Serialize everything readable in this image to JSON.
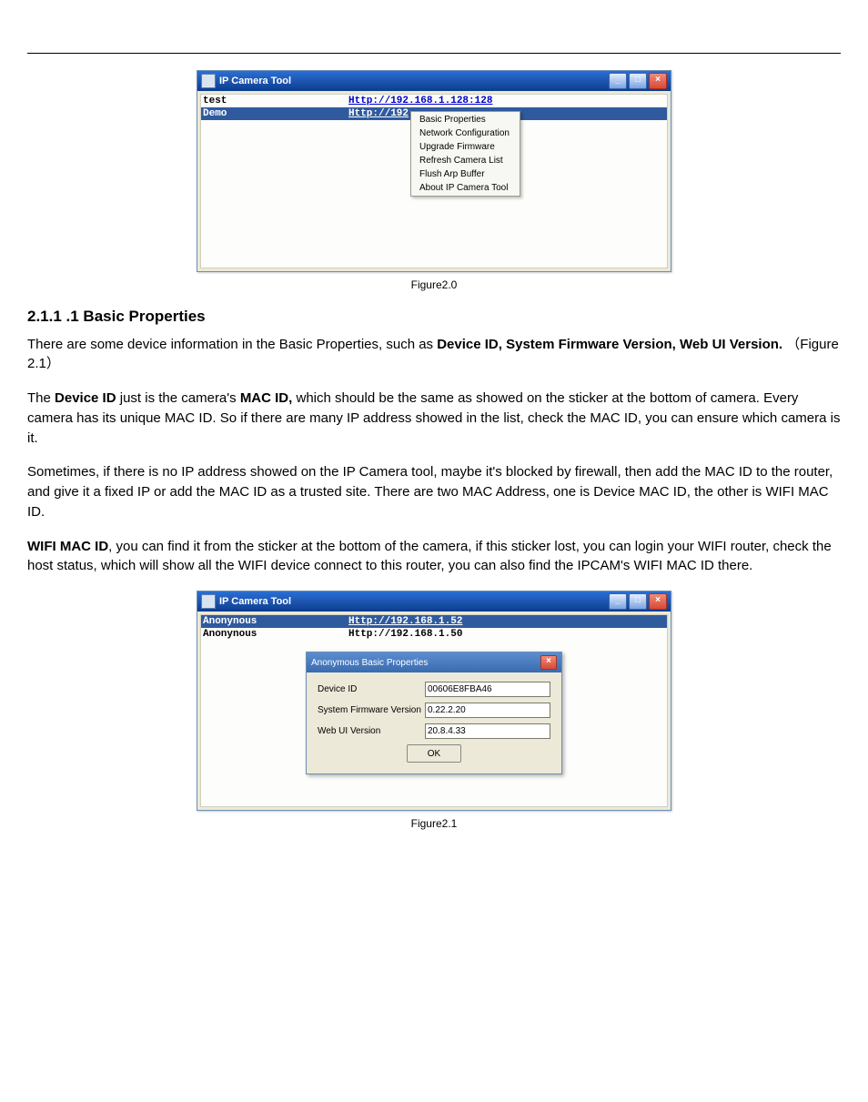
{
  "figure1": {
    "window_title": "IP Camera Tool",
    "rows": [
      {
        "name": "test",
        "url": "Http://192.168.1.128:128",
        "selected": false
      },
      {
        "name": "Demo",
        "url": "Http://192",
        "selected": true
      }
    ],
    "context_menu": [
      "Basic Properties",
      "Network Configuration",
      "Upgrade Firmware",
      "Refresh Camera List",
      "Flush Arp Buffer",
      "About IP Camera Tool"
    ],
    "caption": "Figure2.0"
  },
  "section": {
    "heading": "2.1.1 .1 Basic Properties",
    "p1_a": "There are some device information in the Basic Properties, such as ",
    "p1_bold": "Device ID, System Firmware Version, Web UI Version.",
    "p1_b": "（Figure 2.1）",
    "p2_a": "The ",
    "p2_bold1": "Device ID",
    "p2_b": " just is the camera's ",
    "p2_bold2": "MAC ID,",
    "p2_c": " which should be the same as showed on the sticker at the bottom of camera. Every camera has its unique MAC ID. So if there are many IP address showed in the list, check the MAC ID, you can ensure which camera is it.",
    "p3": "Sometimes, if there is no IP address showed on the IP Camera tool, maybe it's blocked by firewall, then add the MAC ID to the router, and give it a fixed IP or add the MAC ID as a trusted site. There are two MAC Address, one is Device MAC ID, the other is WIFI MAC ID.",
    "p4_bold": "WIFI MAC ID",
    "p4_a": ", you can find it from the sticker at the bottom of the camera, if this sticker lost, you can login your WIFI router, check the host status, which will show all the WIFI device connect to this router, you can also find the IPCAM's WIFI MAC ID there."
  },
  "figure2": {
    "window_title": "IP Camera Tool",
    "rows": [
      {
        "name": "Anonynous",
        "url": "Http://192.168.1.52",
        "selected": true
      },
      {
        "name": "Anonynous",
        "url": "Http://192.168.1.50",
        "selected": false
      }
    ],
    "dialog": {
      "title": "Anonymous Basic Properties",
      "fields": [
        {
          "label": "Device ID",
          "value": "00606E8FBA46"
        },
        {
          "label": "System Firmware Version",
          "value": "0.22.2.20"
        },
        {
          "label": "Web UI Version",
          "value": "20.8.4.33"
        }
      ],
      "ok": "OK"
    },
    "caption": "Figure2.1"
  },
  "winbtn": {
    "min": "_",
    "max": "□",
    "close": "×"
  }
}
